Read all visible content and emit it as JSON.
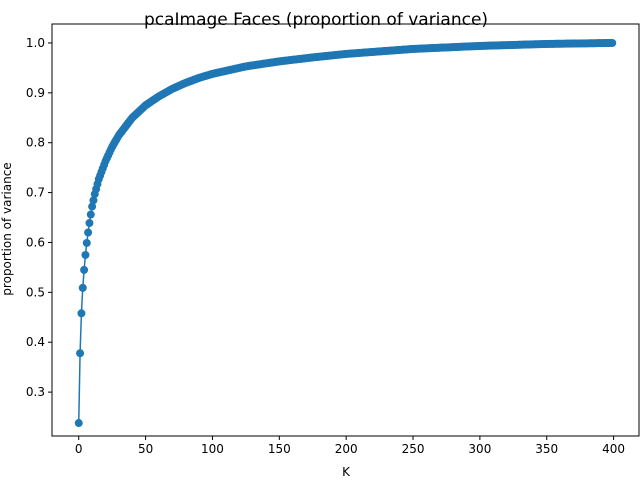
{
  "chart_data": {
    "type": "line",
    "title": "pcaImage Faces (proportion of variance)",
    "xlabel": "K",
    "ylabel": "proportion of variance",
    "xlim": [
      -20,
      419
    ],
    "ylim": [
      0.212,
      1.038
    ],
    "x_ticks": [
      0,
      50,
      100,
      150,
      200,
      250,
      300,
      350,
      400
    ],
    "y_ticks": [
      0.3,
      0.4,
      0.5,
      0.6,
      0.7,
      0.8,
      0.9,
      1.0
    ],
    "y_tick_labels": [
      "0.3",
      "0.4",
      "0.5",
      "0.6",
      "0.7",
      "0.8",
      "0.9",
      "1.0"
    ],
    "grid": false,
    "marker": "circle",
    "color": "#1f77b4",
    "series": [
      {
        "x_start": 0,
        "x_end": 399,
        "x_step": 1,
        "anchor_points": [
          [
            0,
            0.238
          ],
          [
            1,
            0.378
          ],
          [
            2,
            0.458
          ],
          [
            3,
            0.509
          ],
          [
            4,
            0.545
          ],
          [
            5,
            0.575
          ],
          [
            6,
            0.599
          ],
          [
            7,
            0.62
          ],
          [
            8,
            0.639
          ],
          [
            9,
            0.656
          ],
          [
            10,
            0.672
          ],
          [
            12,
            0.697
          ],
          [
            15,
            0.727
          ],
          [
            20,
            0.763
          ],
          [
            25,
            0.792
          ],
          [
            30,
            0.815
          ],
          [
            40,
            0.85
          ],
          [
            50,
            0.875
          ],
          [
            60,
            0.893
          ],
          [
            70,
            0.908
          ],
          [
            80,
            0.92
          ],
          [
            90,
            0.93
          ],
          [
            100,
            0.938
          ],
          [
            125,
            0.953
          ],
          [
            150,
            0.963
          ],
          [
            175,
            0.971
          ],
          [
            200,
            0.978
          ],
          [
            250,
            0.988
          ],
          [
            300,
            0.994
          ],
          [
            350,
            0.998
          ],
          [
            399,
            1.0
          ]
        ]
      }
    ]
  }
}
